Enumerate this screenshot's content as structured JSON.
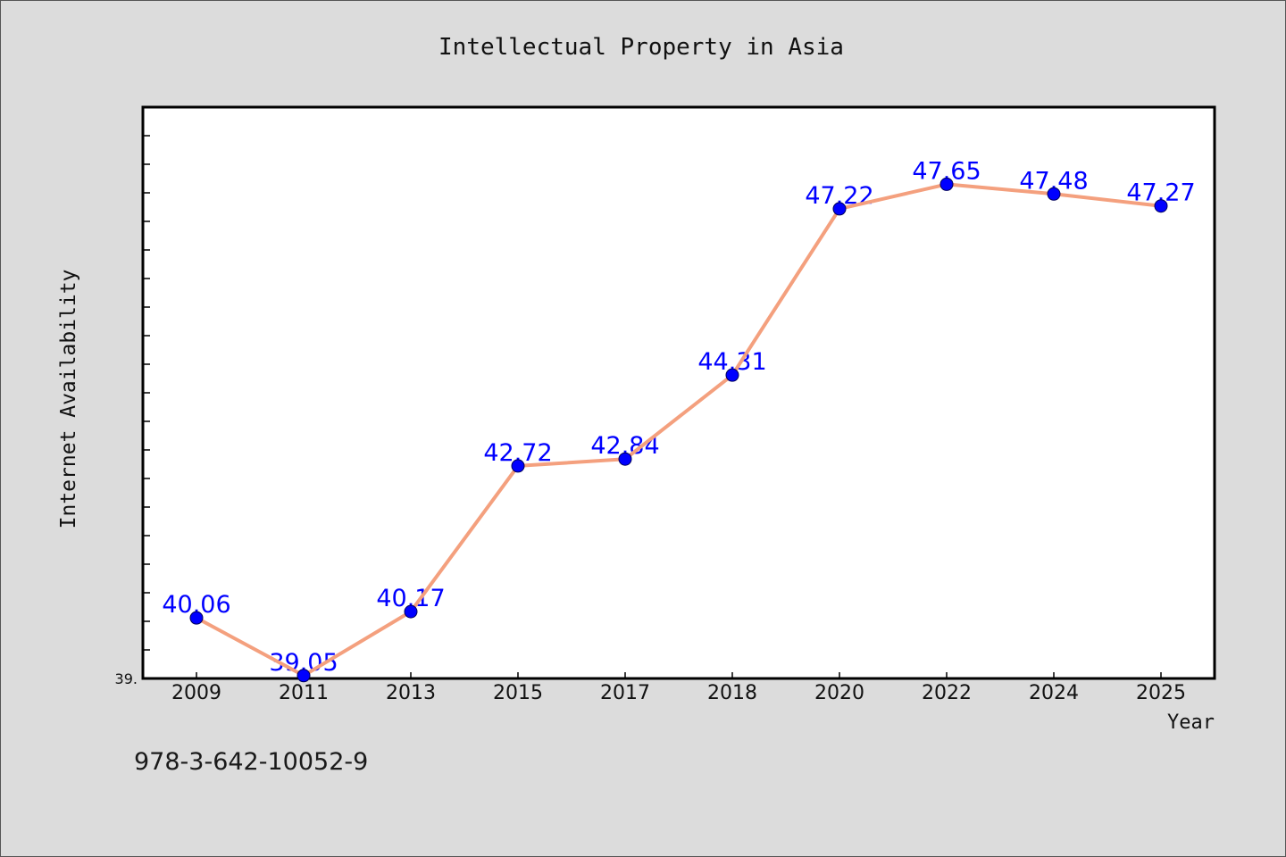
{
  "colors": {
    "figure_background": "#dcdcdc",
    "plot_background": "#ffffff",
    "axis": "#000000",
    "text": "#111111",
    "line": "#f4a07e",
    "marker": "#0000ff",
    "marker_edge": "#00005a",
    "data_label": "#0000ff"
  },
  "chart_data": {
    "type": "line",
    "title": "Intellectual Property in Asia",
    "xlabel": "Year",
    "ylabel": "Internet Availability",
    "categories": [
      "2009",
      "2011",
      "2013",
      "2015",
      "2017",
      "2018",
      "2020",
      "2022",
      "2024",
      "2025"
    ],
    "values": [
      40.06,
      39.05,
      40.17,
      42.72,
      42.84,
      44.31,
      47.22,
      47.65,
      47.48,
      47.27
    ],
    "ylim": [
      39,
      49
    ],
    "y_tick_labels": [
      {
        "value": 39,
        "label": "39."
      }
    ],
    "data_labels": true,
    "markers": "circle",
    "grid": false,
    "legend": "none",
    "annotation": "978-3-642-10052-9"
  }
}
